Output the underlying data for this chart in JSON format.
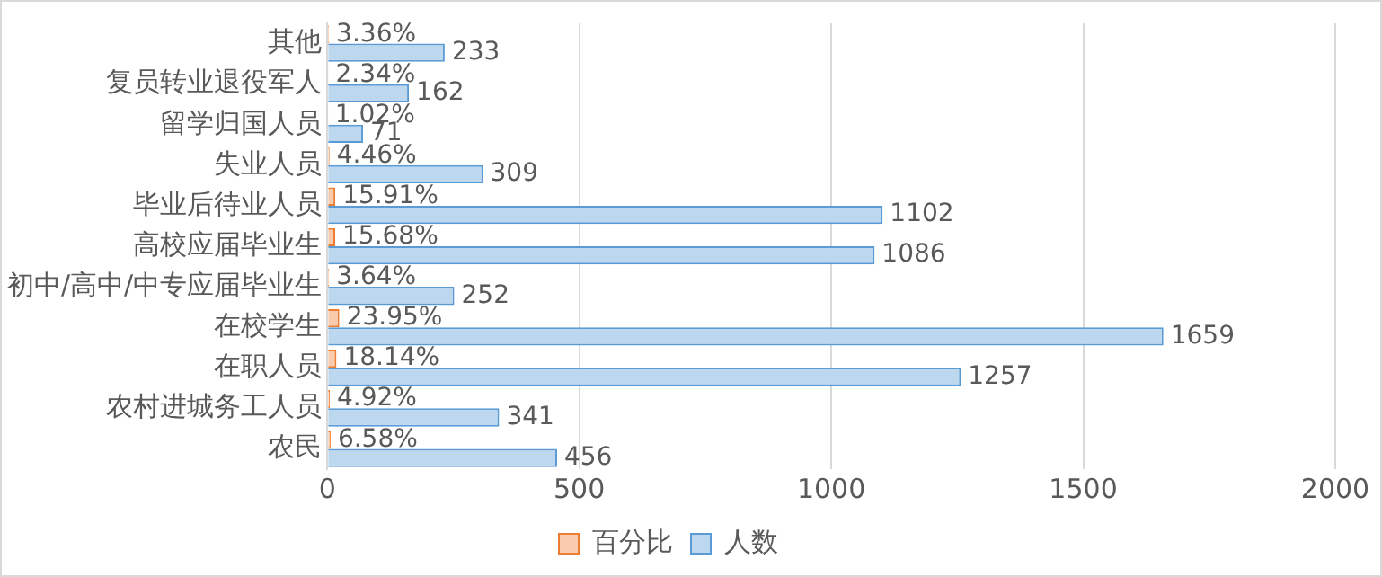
{
  "chart_data": {
    "type": "bar",
    "orientation": "horizontal",
    "categories": [
      "其他",
      "复员转业退役军人",
      "留学归国人员",
      "失业人员",
      "毕业后待业人员",
      "高校应届毕业生",
      "初中/高中/中专应届毕业生",
      "在校学生",
      "在职人员",
      "农村进城务工人员",
      "农民"
    ],
    "series": [
      {
        "name": "百分比",
        "color": "#f8cbad",
        "values": [
          3.36,
          2.34,
          1.02,
          4.46,
          15.91,
          15.68,
          3.64,
          23.95,
          18.14,
          4.92,
          6.58
        ],
        "value_labels": [
          "3.36%",
          "2.34%",
          "1.02%",
          "4.46%",
          "15.91%",
          "15.68%",
          "3.64%",
          "23.95%",
          "18.14%",
          "4.92%",
          "6.58%"
        ]
      },
      {
        "name": "人数",
        "color": "#bdd7ee",
        "values": [
          233,
          162,
          71,
          309,
          1102,
          1086,
          252,
          1659,
          1257,
          341,
          456
        ],
        "value_labels": [
          "233",
          "162",
          "71",
          "309",
          "1102",
          "1086",
          "252",
          "1659",
          "1257",
          "341",
          "456"
        ]
      }
    ],
    "xlim": [
      0,
      2000
    ],
    "xticks": [
      0,
      500,
      1000,
      1500,
      2000
    ],
    "grid": "x",
    "legend": "bottom"
  }
}
